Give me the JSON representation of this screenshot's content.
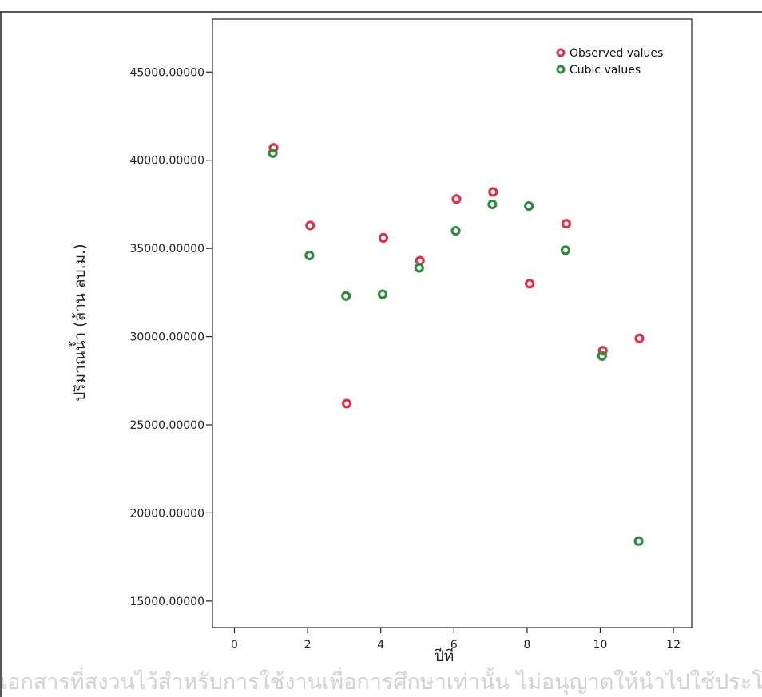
{
  "chart_data": {
    "type": "scatter",
    "title": "",
    "xlabel": "ปีที่",
    "ylabel": "ปริมาณน้ำ (ล้าน ลบ.ม.)",
    "xlim": [
      -0.6,
      12.5
    ],
    "ylim": [
      13500,
      48000
    ],
    "x_ticks": [
      0,
      2,
      4,
      6,
      8,
      10,
      12
    ],
    "x_tick_labels": [
      "0",
      "2",
      "4",
      "6",
      "8",
      "10",
      "12"
    ],
    "y_ticks": [
      15000,
      20000,
      25000,
      30000,
      35000,
      40000,
      45000
    ],
    "y_tick_labels": [
      "15000.00000",
      "20000.00000",
      "25000.00000",
      "30000.00000",
      "35000.00000",
      "40000.00000",
      "45000.00000"
    ],
    "grid": false,
    "legend_position": "top-right",
    "series": [
      {
        "name": "Observed values",
        "color": "#e0304a",
        "x": [
          1,
          2,
          3,
          4,
          5,
          6,
          7,
          8,
          9,
          10,
          11
        ],
        "y": [
          40700,
          36300,
          26200,
          35600,
          34300,
          37800,
          38200,
          33000,
          36400,
          29200,
          29900
        ]
      },
      {
        "name": "Cubic values",
        "color": "#2e8b3e",
        "x": [
          1,
          2,
          3,
          4,
          5,
          6,
          7,
          8,
          9,
          10,
          11
        ],
        "y": [
          40400,
          34600,
          32300,
          32400,
          33900,
          36000,
          37500,
          37400,
          34900,
          28900,
          18400
        ]
      }
    ]
  },
  "watermark": {
    "bottom_text": "เอกสารที่สงวนไว้สำหรับการใช้งานเพื่อการศึกษาเท่านั้น ไม่อนุญาตให้นำไปใช้ประโยชน์"
  }
}
